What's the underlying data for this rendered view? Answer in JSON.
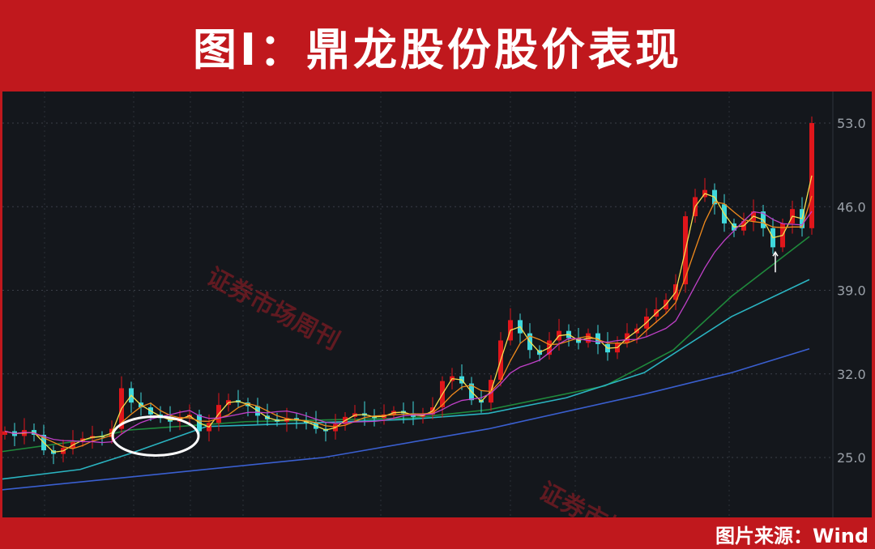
{
  "header": {
    "title": "图I：鼎龙股份股价表现"
  },
  "footer": {
    "source": "图片来源：Wind"
  },
  "watermark": "证券市场周刊",
  "colors": {
    "frame": "#c0181d",
    "background": "#14171c",
    "up": "#e0161b",
    "down": "#3fd8dc",
    "ma5": "#f5e050",
    "ma10": "#f08a1c",
    "ma20": "#c040c8",
    "ma60": "#1f8a3c",
    "ma120": "#2ab3c0",
    "ma250": "#3a5fd0"
  },
  "chart_data": {
    "type": "candlestick",
    "title": "图I：鼎龙股份股价表现",
    "yaxis_position": "right",
    "ylim": [
      21,
      56
    ],
    "yticks": [
      "53.0",
      "46.0",
      "39.0",
      "32.0",
      "25.0"
    ],
    "ytick_values": [
      53,
      46,
      39,
      32,
      25
    ],
    "grid": true,
    "closes": [
      27.2,
      26.8,
      27.3,
      26.9,
      25.6,
      25.3,
      25.8,
      26.3,
      26.6,
      26.8,
      26.7,
      27.4,
      30.8,
      29.6,
      29.2,
      28.6,
      28.3,
      28.0,
      28.4,
      28.6,
      27.2,
      27.9,
      29.4,
      29.8,
      29.6,
      29.3,
      28.5,
      28.2,
      28.0,
      28.3,
      28.1,
      27.9,
      27.4,
      27.2,
      27.8,
      28.4,
      28.7,
      28.5,
      28.3,
      28.6,
      28.9,
      28.7,
      28.4,
      28.6,
      29.2,
      31.4,
      31.8,
      31.2,
      29.8,
      29.6,
      31.5,
      34.8,
      36.5,
      35.4,
      34.0,
      33.6,
      34.8,
      35.6,
      35.0,
      34.6,
      35.4,
      34.5,
      33.8,
      34.6,
      35.4,
      35.8,
      36.8,
      37.4,
      38.2,
      39.5,
      45.2,
      46.8,
      47.4,
      46.2,
      44.6,
      44.0,
      44.8,
      45.6,
      44.2,
      42.6,
      44.6,
      45.8,
      44.2,
      53.0
    ],
    "long_moving_averages": [
      {
        "key": "ma60",
        "points": [
          [
            0,
            25.5
          ],
          [
            8,
            26.4
          ],
          [
            13,
            27.3
          ],
          [
            25,
            28.0
          ],
          [
            42,
            28.3
          ],
          [
            50,
            29.0
          ],
          [
            62,
            31.0
          ],
          [
            69,
            34.0
          ],
          [
            75,
            38.5
          ],
          [
            83,
            43.5
          ]
        ]
      },
      {
        "key": "ma120",
        "points": [
          [
            0,
            23.2
          ],
          [
            8,
            24.0
          ],
          [
            13,
            25.3
          ],
          [
            21,
            27.6
          ],
          [
            25,
            27.7
          ],
          [
            42,
            28.2
          ],
          [
            50,
            28.7
          ],
          [
            58,
            30.0
          ],
          [
            66,
            32.1
          ],
          [
            75,
            36.8
          ],
          [
            83,
            39.9
          ]
        ]
      },
      {
        "key": "ma250",
        "points": [
          [
            0,
            22.3
          ],
          [
            16,
            23.6
          ],
          [
            33,
            25.0
          ],
          [
            50,
            27.4
          ],
          [
            66,
            30.3
          ],
          [
            75,
            32.1
          ],
          [
            83,
            34.1
          ]
        ]
      }
    ],
    "annotations": [
      {
        "type": "ellipse",
        "around_index": [
          8,
          16
        ]
      },
      {
        "type": "arrow-up",
        "at_index": 79
      }
    ]
  }
}
